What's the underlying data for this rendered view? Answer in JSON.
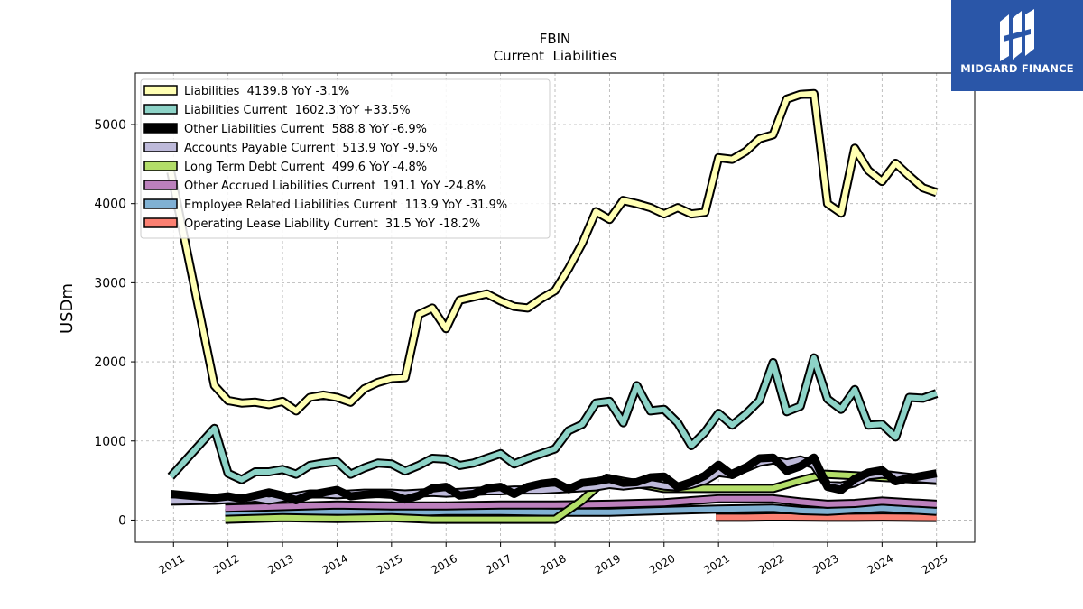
{
  "logo": {
    "text": "MIDGARD FINANCE"
  },
  "chart_data": {
    "type": "line",
    "title": "FBIN",
    "subtitle": "Current  Liabilities",
    "ylabel": "USDm",
    "xlabel": "",
    "ylim": [
      -280,
      5650
    ],
    "xlim": [
      2010.3,
      2025.7
    ],
    "yticks": [
      0,
      1000,
      2000,
      3000,
      4000,
      5000
    ],
    "xticks": [
      2011,
      2012,
      2013,
      2014,
      2015,
      2016,
      2017,
      2018,
      2019,
      2020,
      2021,
      2022,
      2023,
      2024,
      2025
    ],
    "xtick_labels": [
      "2011",
      "2012",
      "2013",
      "2014",
      "2015",
      "2016",
      "2017",
      "2018",
      "2019",
      "2020",
      "2021",
      "2022",
      "2023",
      "2024",
      "2025"
    ],
    "grid": true,
    "legend_position": "upper-left",
    "series": [
      {
        "name": "Liabilities  4139.8 YoY -3.1%",
        "color": "#ffffb3",
        "x": [
          2010.95,
          2011.75,
          2012.0,
          2012.25,
          2012.5,
          2012.75,
          2013.0,
          2013.25,
          2013.5,
          2013.75,
          2014.0,
          2014.25,
          2014.5,
          2014.75,
          2015.0,
          2015.25,
          2015.5,
          2015.75,
          2016.0,
          2016.25,
          2016.5,
          2016.75,
          2017.0,
          2017.25,
          2017.5,
          2017.75,
          2018.0,
          2018.25,
          2018.5,
          2018.75,
          2019.0,
          2019.25,
          2019.5,
          2019.75,
          2020.0,
          2020.25,
          2020.5,
          2020.75,
          2021.0,
          2021.25,
          2021.5,
          2021.75,
          2022.0,
          2022.25,
          2022.5,
          2022.75,
          2023.0,
          2023.25,
          2023.5,
          2023.75,
          2024.0,
          2024.25,
          2024.5,
          2024.75,
          2025.0
        ],
        "values": [
          4400,
          1700,
          1510,
          1480,
          1490,
          1460,
          1500,
          1380,
          1550,
          1580,
          1550,
          1490,
          1660,
          1740,
          1790,
          1800,
          2600,
          2680,
          2420,
          2780,
          2820,
          2860,
          2770,
          2700,
          2680,
          2800,
          2900,
          3180,
          3500,
          3900,
          3800,
          4040,
          4000,
          3950,
          3870,
          3950,
          3870,
          3890,
          4580,
          4560,
          4660,
          4820,
          4870,
          5320,
          5380,
          5390,
          4000,
          3880,
          4700,
          4420,
          4280,
          4510,
          4350,
          4200,
          4140
        ]
      },
      {
        "name": "Liabilities Current  1602.3 YoY +33.5%",
        "color": "#8dd3c7",
        "x": [
          2010.95,
          2011.75,
          2012.0,
          2012.25,
          2012.5,
          2012.75,
          2013.0,
          2013.25,
          2013.5,
          2013.75,
          2014.0,
          2014.25,
          2014.5,
          2014.75,
          2015.0,
          2015.25,
          2015.5,
          2015.75,
          2016.0,
          2016.25,
          2016.5,
          2016.75,
          2017.0,
          2017.25,
          2017.5,
          2017.75,
          2018.0,
          2018.25,
          2018.5,
          2018.75,
          2019.0,
          2019.25,
          2019.5,
          2019.75,
          2020.0,
          2020.25,
          2020.5,
          2020.75,
          2021.0,
          2021.25,
          2021.5,
          2021.75,
          2022.0,
          2022.25,
          2022.5,
          2022.75,
          2023.0,
          2023.25,
          2023.5,
          2023.75,
          2024.0,
          2024.25,
          2024.5,
          2024.75,
          2025.0
        ],
        "values": [
          550,
          1160,
          590,
          510,
          610,
          610,
          640,
          580,
          690,
          720,
          740,
          580,
          660,
          720,
          710,
          620,
          690,
          780,
          770,
          690,
          720,
          780,
          840,
          710,
          780,
          840,
          900,
          1130,
          1210,
          1480,
          1500,
          1230,
          1700,
          1380,
          1400,
          1230,
          940,
          1110,
          1350,
          1200,
          1340,
          1510,
          1990,
          1370,
          1440,
          2050,
          1530,
          1400,
          1650,
          1200,
          1210,
          1050,
          1550,
          1540,
          1600
        ]
      },
      {
        "name": "Other Liabilities Current  588.8 YoY -6.9%",
        "color": "#000000",
        "x": [
          2010.95,
          2011.75,
          2012.0,
          2012.25,
          2012.5,
          2012.75,
          2013.0,
          2013.25,
          2013.5,
          2013.75,
          2014.0,
          2014.25,
          2014.5,
          2014.75,
          2015.0,
          2015.25,
          2015.5,
          2015.75,
          2016.0,
          2016.25,
          2016.5,
          2016.75,
          2017.0,
          2017.25,
          2017.5,
          2017.75,
          2018.0,
          2018.25,
          2018.5,
          2018.75,
          2019.0,
          2019.25,
          2019.5,
          2019.75,
          2020.0,
          2020.25,
          2020.5,
          2020.75,
          2021.0,
          2021.25,
          2021.5,
          2021.75,
          2022.0,
          2022.25,
          2022.5,
          2022.75,
          2023.0,
          2023.25,
          2023.5,
          2023.75,
          2024.0,
          2024.25,
          2024.5,
          2024.75,
          2025.0
        ],
        "values": [
          330,
          280,
          300,
          270,
          310,
          350,
          310,
          250,
          320,
          350,
          380,
          300,
          320,
          330,
          320,
          260,
          310,
          400,
          420,
          310,
          330,
          400,
          420,
          330,
          420,
          460,
          480,
          390,
          470,
          490,
          520,
          470,
          480,
          540,
          550,
          420,
          480,
          560,
          700,
          570,
          660,
          780,
          790,
          620,
          680,
          790,
          420,
          380,
          520,
          600,
          630,
          490,
          530,
          560,
          590
        ]
      },
      {
        "name": "Accounts Payable Current  513.9 YoY -9.5%",
        "color": "#bebada",
        "x": [
          2010.95,
          2011.75,
          2012.0,
          2012.25,
          2012.5,
          2012.75,
          2013.0,
          2013.25,
          2013.5,
          2013.75,
          2014.0,
          2014.25,
          2014.5,
          2014.75,
          2015.0,
          2015.25,
          2015.5,
          2015.75,
          2016.0,
          2016.25,
          2016.5,
          2016.75,
          2017.0,
          2017.25,
          2017.5,
          2017.75,
          2018.0,
          2018.25,
          2018.5,
          2018.75,
          2019.0,
          2019.25,
          2019.5,
          2019.75,
          2020.0,
          2020.25,
          2020.5,
          2020.75,
          2021.0,
          2021.25,
          2021.5,
          2021.75,
          2022.0,
          2022.25,
          2022.5,
          2022.75,
          2023.0,
          2023.25,
          2023.5,
          2023.75,
          2024.0,
          2024.25,
          2024.5,
          2024.75,
          2025.0
        ],
        "values": [
          240,
          250,
          260,
          260,
          280,
          250,
          280,
          300,
          330,
          330,
          320,
          330,
          340,
          340,
          340,
          330,
          340,
          350,
          340,
          350,
          360,
          370,
          370,
          380,
          380,
          380,
          390,
          400,
          410,
          420,
          450,
          430,
          450,
          460,
          430,
          420,
          450,
          500,
          600,
          580,
          660,
          730,
          760,
          720,
          760,
          700,
          440,
          430,
          470,
          560,
          580,
          560,
          540,
          520,
          510
        ]
      },
      {
        "name": "Long Term Debt Current  499.6 YoY -4.8%",
        "color": "#b3de69",
        "x": [
          2011.95,
          2013.0,
          2014.0,
          2015.0,
          2015.75,
          2016.25,
          2017.0,
          2017.75,
          2018.0,
          2018.5,
          2018.95,
          2019.25,
          2019.5,
          2019.75,
          2020.0,
          2020.5,
          2021.0,
          2021.5,
          2022.0,
          2022.5,
          2022.95,
          2023.5,
          2024.0,
          2024.5,
          2025.0
        ],
        "values": [
          10,
          30,
          20,
          30,
          10,
          10,
          10,
          10,
          10,
          250,
          530,
          490,
          460,
          430,
          400,
          400,
          400,
          400,
          400,
          500,
          580,
          560,
          540,
          520,
          500
        ]
      },
      {
        "name": "Other Accrued Liabilities Current  191.1 YoY -24.8%",
        "color": "#bc80bd",
        "x": [
          2011.95,
          2013.0,
          2014.0,
          2015.0,
          2016.0,
          2017.0,
          2018.0,
          2019.0,
          2020.0,
          2021.0,
          2022.0,
          2022.5,
          2023.0,
          2023.5,
          2024.0,
          2024.5,
          2025.0
        ],
        "values": [
          150,
          170,
          190,
          180,
          180,
          190,
          190,
          200,
          220,
          270,
          270,
          230,
          200,
          210,
          240,
          220,
          200
        ]
      },
      {
        "name": "Employee Related Liabilities Current  113.9 YoY -31.9%",
        "color": "#80b1d3",
        "x": [
          2011.95,
          2013.0,
          2014.0,
          2015.0,
          2016.0,
          2017.0,
          2018.0,
          2019.0,
          2020.0,
          2021.0,
          2022.0,
          2022.5,
          2023.0,
          2023.5,
          2024.0,
          2024.5,
          2025.0
        ],
        "values": [
          80,
          110,
          110,
          90,
          110,
          110,
          100,
          100,
          120,
          140,
          150,
          120,
          110,
          130,
          150,
          130,
          110
        ]
      },
      {
        "name": "Operating Lease Liability Current  31.5 YoY -18.2%",
        "color": "#fb8072",
        "x": [
          2020.95,
          2021.5,
          2022.0,
          2022.5,
          2023.0,
          2023.5,
          2024.0,
          2024.5,
          2025.0
        ],
        "values": [
          35,
          35,
          40,
          38,
          35,
          35,
          38,
          35,
          32
        ]
      }
    ]
  }
}
